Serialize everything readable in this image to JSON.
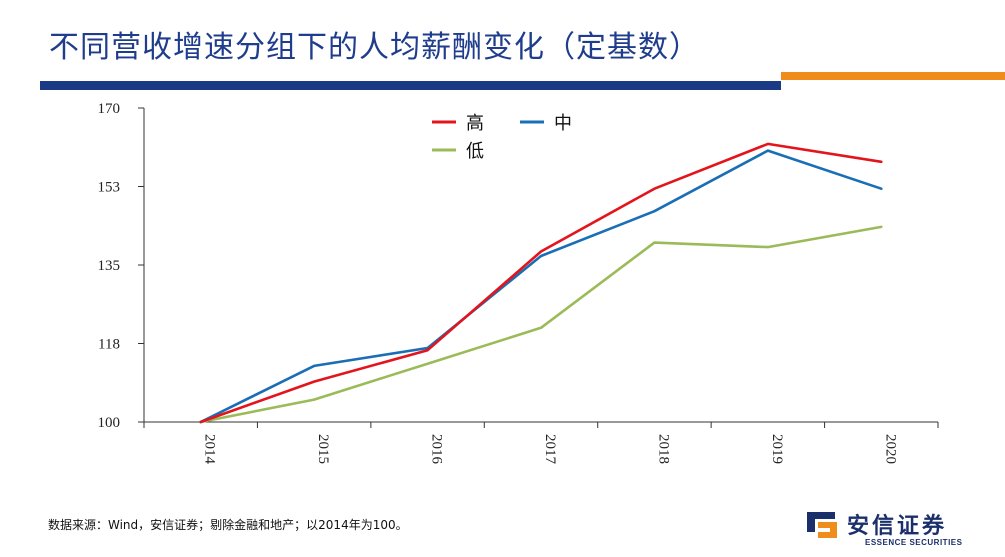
{
  "header": {
    "title": "不同营收增速分组下的人均薪酬变化（定基数）"
  },
  "colors": {
    "title": "#1f3d8c",
    "rule_blue": "#1b3a86",
    "rule_orange": "#f08c1c"
  },
  "chart_data": {
    "type": "line",
    "x": [
      "2014",
      "2015",
      "2016",
      "2017",
      "2018",
      "2019",
      "2020"
    ],
    "ylim": [
      100,
      170
    ],
    "yticks": [
      "100",
      "118",
      "135",
      "153",
      "170"
    ],
    "series": [
      {
        "name": "高",
        "color": "#e3141b",
        "values": [
          100,
          109,
          116,
          138,
          152,
          162,
          158
        ]
      },
      {
        "name": "中",
        "color": "#1a6eb5",
        "values": [
          100,
          112.5,
          116.5,
          137,
          147,
          160.5,
          152
        ]
      },
      {
        "name": "低",
        "color": "#9bbb59",
        "values": [
          100,
          105,
          113,
          121,
          140,
          139,
          143.5
        ]
      }
    ],
    "legend_position": "top-center",
    "grid": false
  },
  "footer": {
    "source": "数据来源：Wind，安信证券；剔除金融和地产；以2014年为100。"
  },
  "logo": {
    "name_cn": "安信证券",
    "name_en": "ESSENCE SECURITIES",
    "icon": "essence-logo-icon"
  }
}
